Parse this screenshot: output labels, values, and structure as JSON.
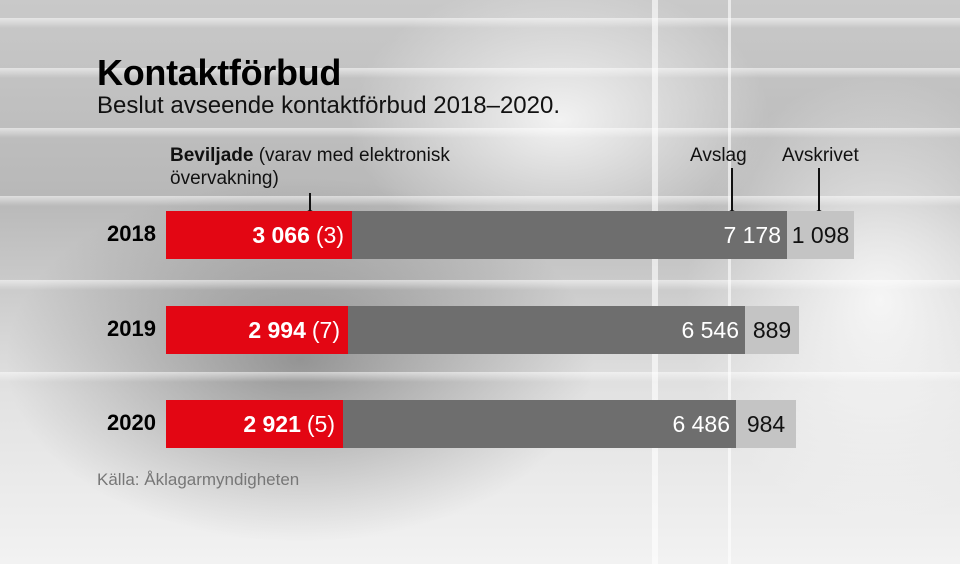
{
  "title": "Kontaktförbud",
  "subtitle": "Beslut avseende kontaktförbud 2018–2020.",
  "legend": {
    "granted_bold": "Beviljade",
    "granted_rest": "(varav med elektronisk övervakning)",
    "rejected": "Avslag",
    "written_off": "Avskrivet"
  },
  "source": "Källa: Åklagarmyndigheten",
  "colors": {
    "granted": "#e30613",
    "rejected": "#6e6e6e",
    "written_off": "#c4c4c4"
  },
  "chart_data": {
    "type": "bar",
    "orientation": "horizontal",
    "stacked": true,
    "categories": [
      "2018",
      "2019",
      "2020"
    ],
    "series": [
      {
        "name": "Beviljade",
        "values": [
          3066,
          2994,
          2921
        ],
        "labels": [
          "3 066",
          "2 994",
          "2 921"
        ],
        "sub_values": [
          3,
          7,
          5
        ],
        "sub_labels": [
          "(3)",
          "(7)",
          "(5)"
        ]
      },
      {
        "name": "Avslag",
        "values": [
          7178,
          6546,
          6486
        ],
        "labels": [
          "7 178",
          "6 546",
          "6 486"
        ]
      },
      {
        "name": "Avskrivet",
        "values": [
          1098,
          889,
          984
        ],
        "labels": [
          "1 098",
          "889",
          "984"
        ]
      }
    ],
    "title": "Kontaktförbud",
    "subtitle": "Beslut avseende kontaktförbud 2018–2020."
  }
}
